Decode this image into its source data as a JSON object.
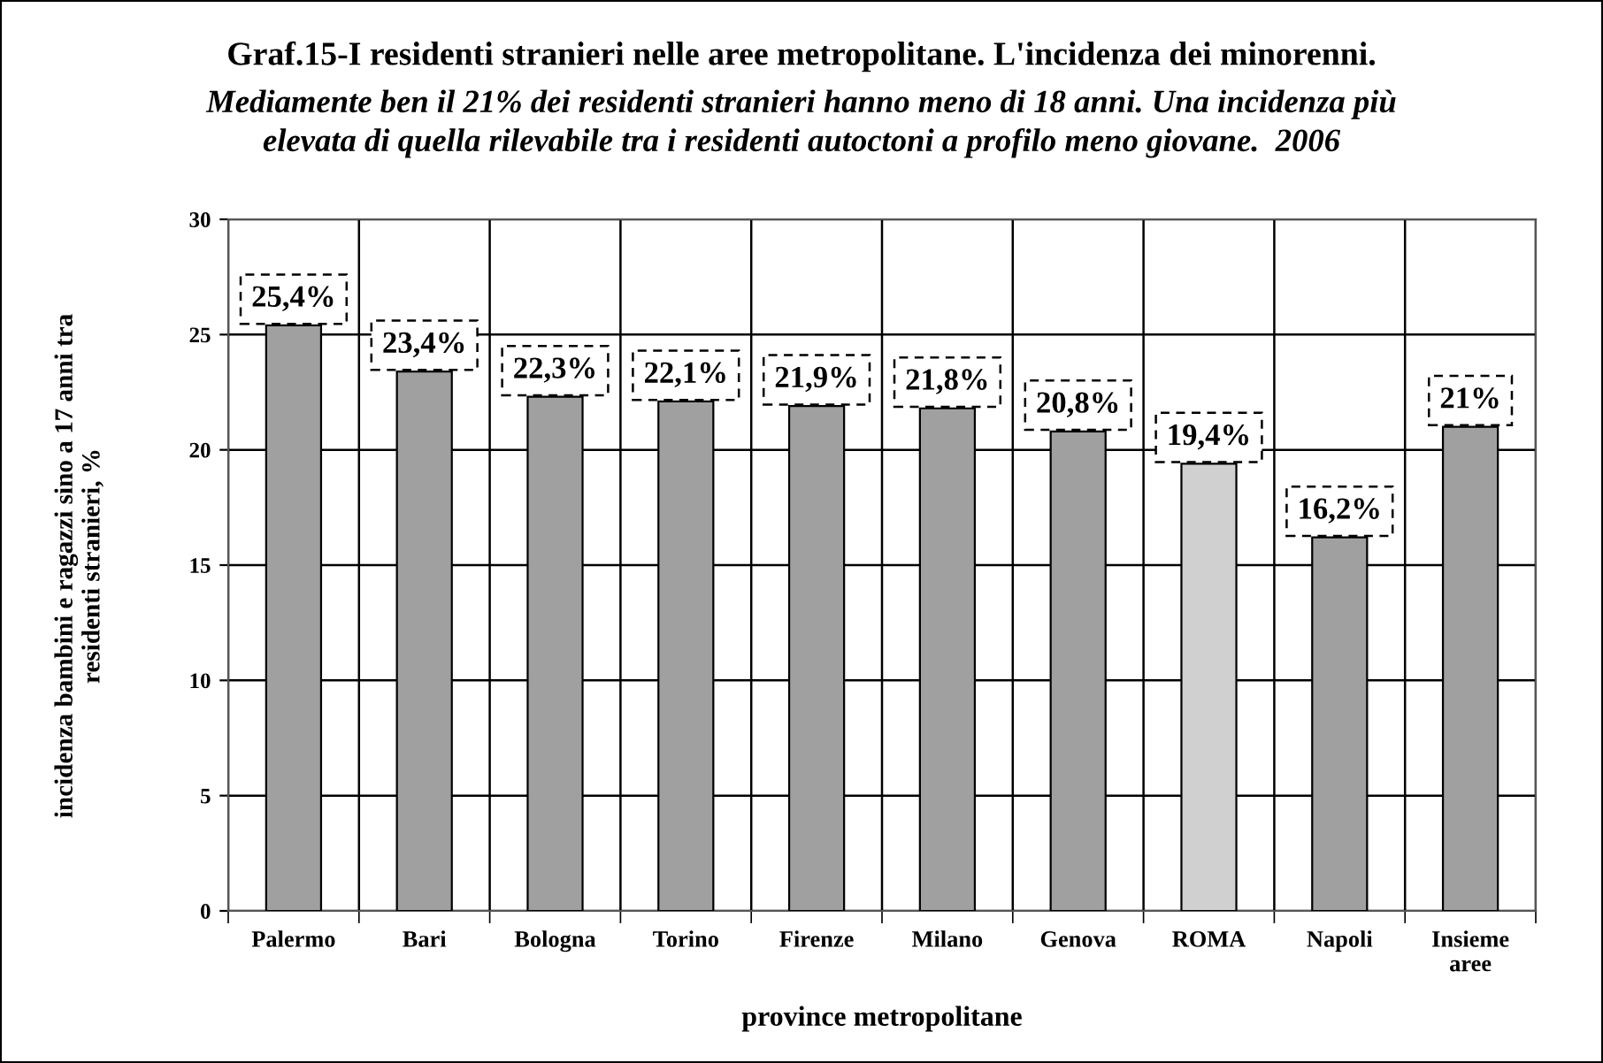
{
  "chart_data": {
    "type": "bar",
    "title": "Graf.15-I residenti stranieri nelle aree metropolitane. L'incidenza dei minorenni.",
    "subtitle": "Mediamente ben il 21% dei residenti stranieri hanno meno di 18 anni. Una incidenza più\nelevata di quella rilevabile tra i residenti autoctoni a profilo meno giovane.  2006",
    "xlabel": "province metropolitane",
    "ylabel": "incidenza bambini e ragazzi sino a 17 anni tra\nresidenti stranieri, %",
    "categories": [
      "Palermo",
      "Bari",
      "Bologna",
      "Torino",
      "Firenze",
      "Milano",
      "Genova",
      "ROMA",
      "Napoli",
      "Insieme\naree"
    ],
    "values": [
      25.4,
      23.4,
      22.3,
      22.1,
      21.9,
      21.8,
      20.8,
      19.4,
      16.2,
      21
    ],
    "value_labels": [
      "25,4%",
      "23,4%",
      "22,3%",
      "22,1%",
      "21,9%",
      "21,8%",
      "20,8%",
      "19,4%",
      "16,2%",
      "21%"
    ],
    "colors": [
      "#a0a0a0",
      "#a0a0a0",
      "#a0a0a0",
      "#a0a0a0",
      "#a0a0a0",
      "#a0a0a0",
      "#a0a0a0",
      "#d0d0d0",
      "#a0a0a0",
      "#a0a0a0"
    ],
    "ylim": [
      0,
      30
    ],
    "yticks": [
      0,
      5,
      10,
      15,
      20,
      25,
      30
    ],
    "grid": true
  }
}
